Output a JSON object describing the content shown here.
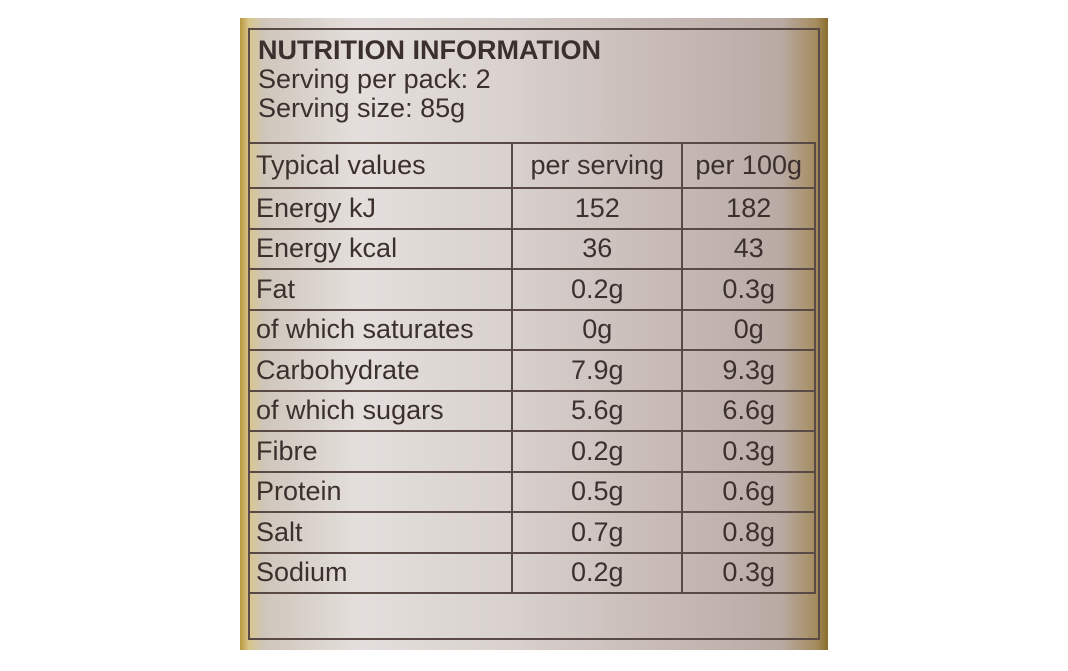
{
  "header": {
    "title": "NUTRITION INFORMATION",
    "lines": [
      "Serving per pack: 2",
      "Serving size: 85g"
    ]
  },
  "table": {
    "columns": [
      "Typical values",
      "per serving",
      "per 100g"
    ],
    "rows": [
      [
        "Energy kJ",
        "152",
        "182"
      ],
      [
        "Energy kcal",
        "36",
        "43"
      ],
      [
        "Fat",
        "0.2g",
        "0.3g"
      ],
      [
        "of which saturates",
        "0g",
        "0g"
      ],
      [
        "Carbohydrate",
        "7.9g",
        "9.3g"
      ],
      [
        "of which sugars",
        "5.6g",
        "6.6g"
      ],
      [
        "Fibre",
        "0.2g",
        "0.3g"
      ],
      [
        "Protein",
        "0.5g",
        "0.6g"
      ],
      [
        "Salt",
        "0.7g",
        "0.8g"
      ],
      [
        "Sodium",
        "0.2g",
        "0.3g"
      ]
    ]
  }
}
